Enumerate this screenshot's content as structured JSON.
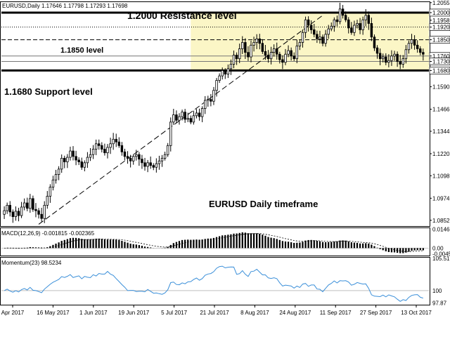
{
  "header": {
    "symbol_line": "EURUSD,Daily  1.17646 1.17798 1.17293 1.17698"
  },
  "annotations": {
    "resistance": "1.2000 Resistance level",
    "mid": "1.1850 level",
    "support": "1.1680 Support level",
    "timeframe": "EURUSD Daily timeframe"
  },
  "colors": {
    "zone_fill": "#fbf6c6",
    "momentum_line": "#3a8fd9",
    "bull_candle": "#ffffff",
    "bear_candle": "#000000"
  },
  "chart_data": [
    {
      "type": "candlestick",
      "name": "price",
      "y_range": [
        1.082,
        1.2058
      ],
      "y_ticks": [
        "1.2055",
        "1.2000",
        "1.1958",
        "1.1920",
        "1.1850",
        "1.1760",
        "1.1730",
        "1.1680",
        "1.1590",
        "1.1466",
        "1.1344",
        "1.1220",
        "1.1098",
        "1.0974",
        "1.0852"
      ],
      "x_labels": [
        "Apr 2017",
        "16 May 2017",
        "1 Jun 2017",
        "19 Jun 2017",
        "5 Jul 2017",
        "21 Jul 2017",
        "8 Aug 2017",
        "24 Aug 2017",
        "11 Sep 2017",
        "27 Sep 2017",
        "13 Oct 2017"
      ],
      "horizontal_levels": [
        {
          "value": 1.2,
          "style": "thick"
        },
        {
          "value": 1.192,
          "style": "dotted"
        },
        {
          "value": 1.185,
          "style": "dashed"
        },
        {
          "value": 1.176,
          "style": "solid-thin"
        },
        {
          "value": 1.173,
          "style": "solid-thin"
        },
        {
          "value": 1.168,
          "style": "thick"
        }
      ],
      "zone": {
        "from": 1.168,
        "to": 1.2,
        "start_label": "21 Jul 2017"
      },
      "closes": [
        1.0905,
        1.0935,
        1.0898,
        1.0872,
        1.0902,
        1.0878,
        1.0925,
        1.0948,
        1.0918,
        1.0972,
        1.0912,
        1.0905,
        1.0885,
        1.0862,
        1.0935,
        1.0985,
        1.1035,
        1.1075,
        1.1105,
        1.1135,
        1.1195,
        1.1175,
        1.12,
        1.1235,
        1.1205,
        1.1185,
        1.1175,
        1.1145,
        1.117,
        1.12,
        1.1215,
        1.1245,
        1.1275,
        1.1265,
        1.1245,
        1.1225,
        1.1255,
        1.1275,
        1.13,
        1.1285,
        1.1265,
        1.123,
        1.1205,
        1.1195,
        1.118,
        1.1205,
        1.1215,
        1.119,
        1.117,
        1.115,
        1.117,
        1.1155,
        1.1145,
        1.1165,
        1.118,
        1.1195,
        1.1215,
        1.1265,
        1.1395,
        1.1435,
        1.1405,
        1.1425,
        1.145,
        1.141,
        1.1415,
        1.1395,
        1.143,
        1.1445,
        1.1425,
        1.147,
        1.1515,
        1.152,
        1.151,
        1.157,
        1.1625,
        1.165,
        1.168,
        1.166,
        1.169,
        1.1715,
        1.1765,
        1.1745,
        1.18,
        1.1835,
        1.178,
        1.1755,
        1.182,
        1.1835,
        1.1855,
        1.183,
        1.1785,
        1.1765,
        1.1745,
        1.178,
        1.18,
        1.177,
        1.174,
        1.1725,
        1.177,
        1.179,
        1.176,
        1.1745,
        1.1815,
        1.1835,
        1.189,
        1.196,
        1.193,
        1.1905,
        1.188,
        1.1855,
        1.1865,
        1.183,
        1.188,
        1.191,
        1.1925,
        1.196,
        1.195,
        1.202,
        1.1985,
        1.196,
        1.1915,
        1.189,
        1.193,
        1.194,
        1.1905,
        1.196,
        1.1985,
        1.194,
        1.1865,
        1.1805,
        1.1775,
        1.1745,
        1.1755,
        1.1725,
        1.1735,
        1.176,
        1.177,
        1.173,
        1.1715,
        1.1745,
        1.1795,
        1.183,
        1.185,
        1.182,
        1.18,
        1.178,
        1.177
      ]
    },
    {
      "type": "histogram",
      "name": "MACD",
      "label": "MACD(12,26,9) -0.001815 -0.002365",
      "y_range": [
        -0.0058,
        0.0155
      ],
      "y_ticks": [
        "0.0146",
        "0.00",
        "-0.0045"
      ]
    },
    {
      "type": "line",
      "name": "Momentum",
      "label": "Momentum(23) 98.5234",
      "y_range": [
        97.6,
        105.6
      ],
      "y_ticks": [
        "105.51",
        "100",
        "97.87"
      ]
    }
  ]
}
